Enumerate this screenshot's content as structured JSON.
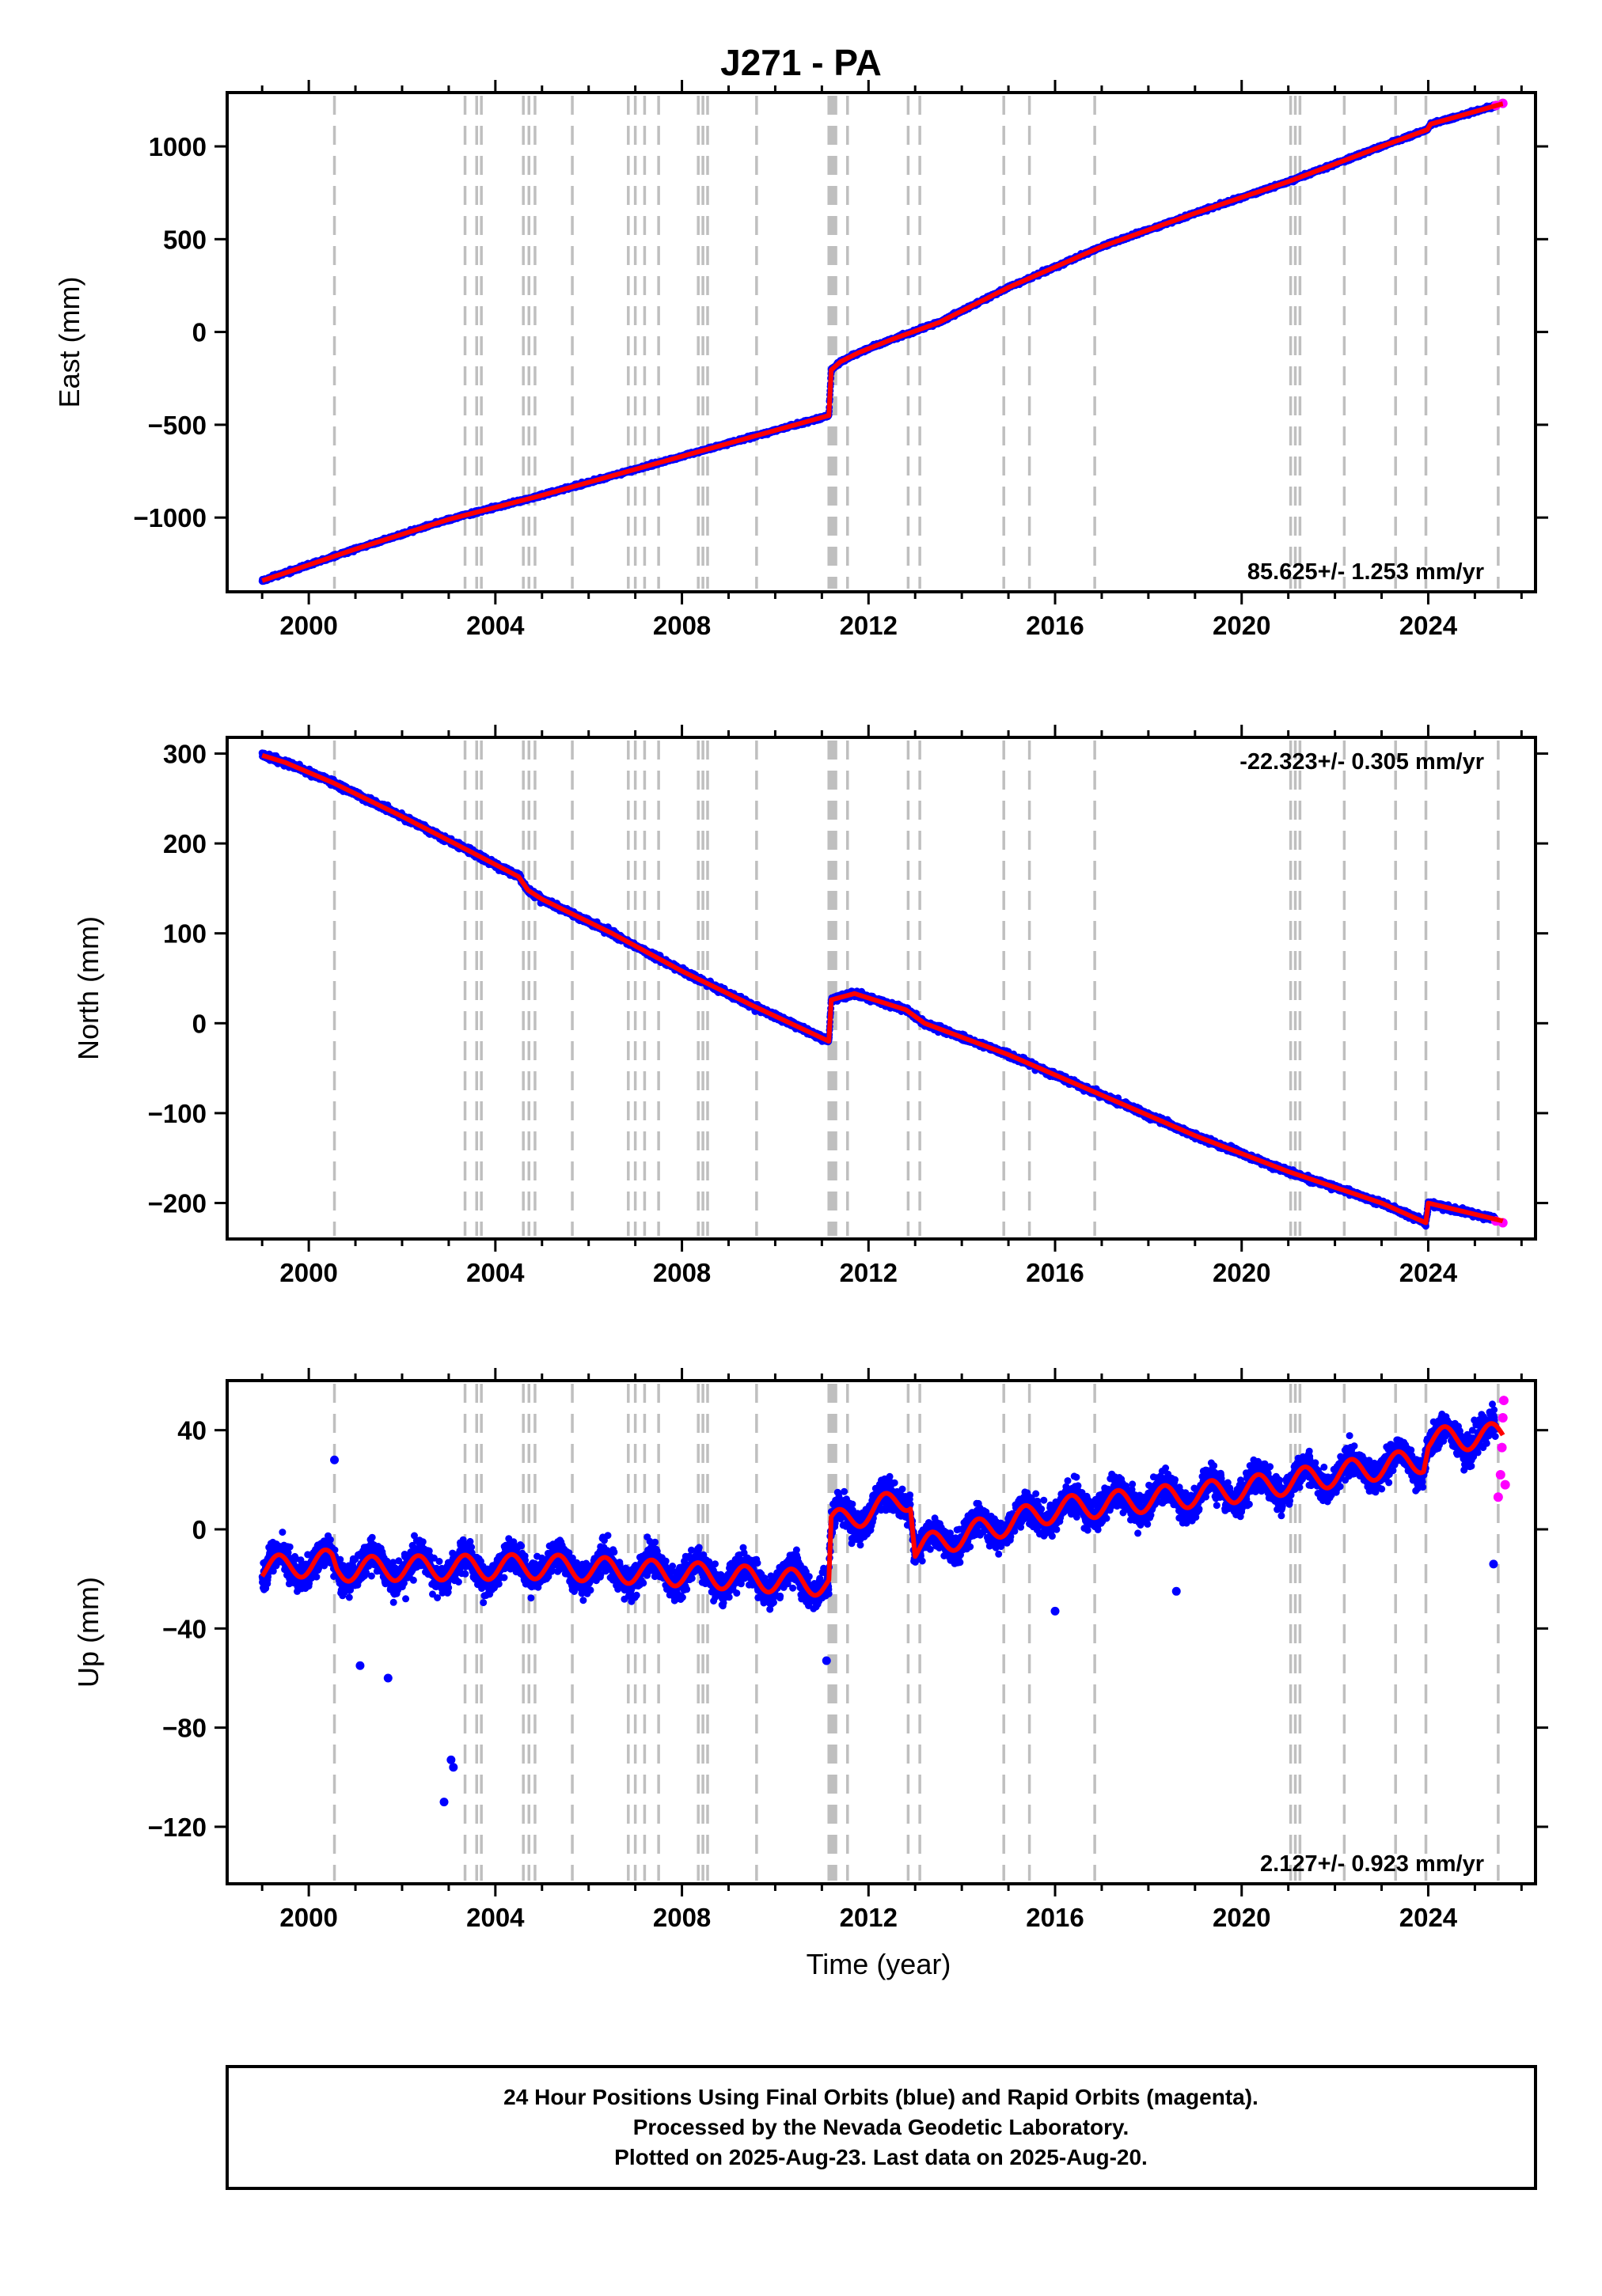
{
  "chart_data": {
    "type": "scatter",
    "title": "J271 - PA",
    "xlabel": "Time (year)",
    "xlim": [
      1998.25,
      2026.3
    ],
    "xticks": [
      2000,
      2004,
      2008,
      2012,
      2016,
      2020,
      2024
    ],
    "xticklabels": [
      "2000",
      "2004",
      "2008",
      "2012",
      "2016",
      "2020",
      "2024"
    ],
    "event_lines_years": [
      2000.55,
      2003.35,
      2003.6,
      2003.7,
      2004.6,
      2004.72,
      2004.85,
      2005.65,
      2006.85,
      2007.0,
      2007.2,
      2007.5,
      2008.35,
      2008.45,
      2008.55,
      2009.6,
      2011.15,
      2011.2,
      2011.25,
      2011.3,
      2011.55,
      2012.85,
      2013.1,
      2014.9,
      2015.45,
      2016.85,
      2021.05,
      2021.15,
      2021.25,
      2022.2,
      2023.3,
      2023.95,
      2025.5
    ],
    "legend": "none",
    "grid": false,
    "series_colors": {
      "final_orbits": "#0000ff",
      "rapid_orbits": "#ff00ff",
      "model": "#ff0000",
      "event_lines": "#bfbfbf"
    },
    "panels": [
      {
        "name": "east",
        "ylabel": "East (mm)",
        "ylim": [
          -1400,
          1290
        ],
        "yticks": [
          -1000,
          -500,
          0,
          500,
          1000
        ],
        "yticklabels": [
          "−1000",
          "−500",
          "0",
          "500",
          "1000"
        ],
        "rate_label": "85.625+/- 1.253 mm/yr",
        "rate_position": "bottom-right",
        "model_x": [
          1999.0,
          2001.0,
          2003.0,
          2005.0,
          2007.0,
          2009.0,
          2011.15,
          2011.2,
          2011.4,
          2011.8,
          2012.5,
          2013.5,
          2015.0,
          2017.0,
          2019.0,
          2021.0,
          2023.0,
          2023.98,
          2024.05,
          2025.6
        ],
        "model_y": [
          -1340,
          -1170,
          -1010,
          -880,
          -740,
          -600,
          -450,
          -205,
          -160,
          -110,
          -40,
          50,
          240,
          460,
          640,
          810,
          1000,
          1090,
          1120,
          1230
        ],
        "noise_mm": 10,
        "rapid_x": [
          2025.45,
          2025.6
        ],
        "rapid_y": [
          1220,
          1232
        ]
      },
      {
        "name": "north",
        "ylabel": "North (mm)",
        "ylim": [
          -240,
          318
        ],
        "yticks": [
          -200,
          -100,
          0,
          100,
          200,
          300
        ],
        "yticklabels": [
          "−200",
          "−100",
          "0",
          "100",
          "200",
          "300"
        ],
        "rate_label": "-22.323+/- 0.305 mm/yr",
        "rate_position": "top-right",
        "model_x": [
          1999.0,
          1999.5,
          2000.5,
          2002.0,
          2003.5,
          2004.5,
          2004.7,
          2005.0,
          2006.5,
          2008.0,
          2009.5,
          2011.15,
          2011.2,
          2011.7,
          2012.8,
          2013.2,
          2015.0,
          2017.0,
          2019.0,
          2021.0,
          2023.0,
          2023.95,
          2024.0,
          2025.6
        ],
        "model_y": [
          298,
          290,
          268,
          230,
          190,
          163,
          148,
          138,
          100,
          58,
          20,
          -20,
          26,
          33,
          15,
          0,
          -35,
          -80,
          -125,
          -165,
          -200,
          -222,
          -200,
          -220
        ],
        "noise_mm": 4,
        "rapid_x": [
          2025.45,
          2025.6
        ],
        "rapid_y": [
          -220,
          -222
        ]
      },
      {
        "name": "up",
        "ylabel": "Up (mm)",
        "ylim": [
          -143,
          60
        ],
        "yticks": [
          -120,
          -80,
          -40,
          0,
          40
        ],
        "yticklabels": [
          "−120",
          "−80",
          "−40",
          "0",
          "40"
        ],
        "rate_label": "2.127+/- 0.923 mm/yr",
        "rate_position": "bottom-right",
        "model_x": [
          1999.0,
          2000.5,
          2000.6,
          2005.0,
          2008.0,
          2011.15,
          2011.2,
          2012.9,
          2013.0,
          2016.0,
          2020.0,
          2023.9,
          2024.0,
          2025.6
        ],
        "model_y": [
          -16,
          -13,
          -16,
          -15,
          -18,
          -22,
          2,
          13,
          -8,
          8,
          16,
          28,
          36,
          38
        ],
        "seasonal_amp_mm": 5,
        "noise_mm": 8,
        "outliers_x": [
          2000.55,
          2001.1,
          2001.7,
          2002.9,
          2003.05,
          2003.1,
          2011.1,
          2016.0,
          2018.6,
          2025.4
        ],
        "outliers_y": [
          28,
          -55,
          -60,
          -110,
          -93,
          -96,
          -53,
          -33,
          -25,
          -14
        ],
        "rapid_x": [
          2025.5,
          2025.55,
          2025.58,
          2025.6,
          2025.62,
          2025.65
        ],
        "rapid_y": [
          13,
          22,
          33,
          45,
          52,
          18
        ]
      }
    ]
  },
  "footer": {
    "line1": "24 Hour Positions Using Final Orbits (blue) and Rapid Orbits (magenta).",
    "line2": "Processed by the Nevada Geodetic Laboratory.",
    "line3": "Plotted on 2025-Aug-23. Last data on 2025-Aug-20."
  }
}
